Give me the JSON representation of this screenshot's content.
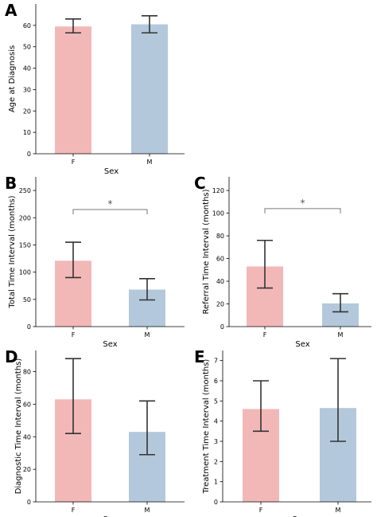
{
  "colors": {
    "F": "#f2b8b8",
    "M": "#b4c8dc",
    "error": "#333333",
    "significance": "#777777"
  },
  "chart_data": [
    {
      "panel": "A",
      "type": "bar",
      "categories": [
        "F",
        "M"
      ],
      "values": [
        59.5,
        60.5
      ],
      "errors": [
        [
          56.5,
          63.0
        ],
        [
          56.5,
          64.5
        ]
      ],
      "xlabel": "Sex",
      "ylabel": "Age at Diagnosis",
      "ylim": [
        0,
        70
      ],
      "yticks": [
        0,
        10,
        20,
        30,
        40,
        50,
        60
      ],
      "significance": null
    },
    {
      "panel": "B",
      "type": "bar",
      "categories": [
        "F",
        "M"
      ],
      "values": [
        121,
        68
      ],
      "errors": [
        [
          90,
          155
        ],
        [
          49,
          88
        ]
      ],
      "xlabel": "Sex",
      "ylabel": "Total Time Interval (months)",
      "ylim": [
        0,
        275
      ],
      "yticks": [
        0,
        50,
        100,
        150,
        200,
        250
      ],
      "significance": {
        "label": "*",
        "y": 215
      }
    },
    {
      "panel": "C",
      "type": "bar",
      "categories": [
        "F",
        "M"
      ],
      "values": [
        53,
        20.5
      ],
      "errors": [
        [
          34,
          76
        ],
        [
          13,
          29
        ]
      ],
      "xlabel": "Sex",
      "ylabel": "Referral Time Interval (months)",
      "ylim": [
        0,
        132
      ],
      "yticks": [
        0,
        20,
        40,
        60,
        80,
        100,
        120
      ],
      "significance": {
        "label": "*",
        "y": 104
      }
    },
    {
      "panel": "D",
      "type": "bar",
      "categories": [
        "F",
        "M"
      ],
      "values": [
        63,
        43
      ],
      "errors": [
        [
          42,
          88
        ],
        [
          29,
          62
        ]
      ],
      "xlabel": "Sex",
      "ylabel": "Diagnostic Time Interval (months)",
      "ylim": [
        0,
        93
      ],
      "yticks": [
        0,
        20,
        40,
        60,
        80
      ],
      "significance": null
    },
    {
      "panel": "E",
      "type": "bar",
      "categories": [
        "F",
        "M"
      ],
      "values": [
        4.6,
        4.65
      ],
      "errors": [
        [
          3.5,
          6.0
        ],
        [
          3.0,
          7.1
        ]
      ],
      "xlabel": "Sex",
      "ylabel": "Treatment Time Interval (months)",
      "ylim": [
        0,
        7.5
      ],
      "yticks": [
        0,
        1,
        2,
        3,
        4,
        5,
        6,
        7
      ],
      "significance": null
    }
  ]
}
